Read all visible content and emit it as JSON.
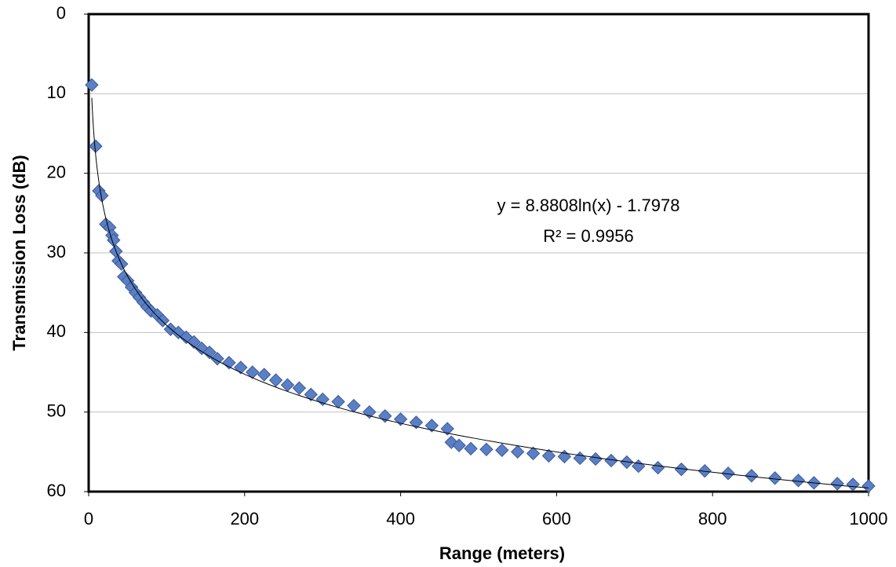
{
  "chart_data": {
    "type": "scatter",
    "x_label": "Range (meters)",
    "y_label": "Transmission Loss (dB)",
    "x": [
      4,
      9,
      13,
      17,
      22,
      27,
      30,
      32,
      35,
      38,
      42,
      45,
      50,
      55,
      60,
      65,
      70,
      75,
      80,
      88,
      95,
      105,
      115,
      125,
      135,
      145,
      155,
      165,
      180,
      195,
      210,
      225,
      240,
      255,
      270,
      285,
      300,
      320,
      340,
      360,
      380,
      400,
      420,
      440,
      460,
      465,
      475,
      490,
      510,
      530,
      550,
      570,
      590,
      610,
      630,
      650,
      670,
      690,
      705,
      730,
      760,
      790,
      820,
      850,
      880,
      910,
      930,
      960,
      980,
      1000
    ],
    "values": [
      8.9,
      16.6,
      22.2,
      22.8,
      26.4,
      26.8,
      27.8,
      28.4,
      29.8,
      31.0,
      31.4,
      33.0,
      33.5,
      34.3,
      35.0,
      35.6,
      36.2,
      36.8,
      37.3,
      37.8,
      38.5,
      39.6,
      40.0,
      40.6,
      41.2,
      42.0,
      42.5,
      43.3,
      43.8,
      44.4,
      45.0,
      45.3,
      46.0,
      46.6,
      47.0,
      47.8,
      48.4,
      48.7,
      49.2,
      50.0,
      50.5,
      50.9,
      51.3,
      51.7,
      52.1,
      53.8,
      54.2,
      54.6,
      54.7,
      54.8,
      55.0,
      55.2,
      55.5,
      55.6,
      55.8,
      55.9,
      56.1,
      56.3,
      56.8,
      57.0,
      57.2,
      57.4,
      57.7,
      58.0,
      58.3,
      58.6,
      58.9,
      59.0,
      59.1,
      59.3
    ],
    "color": "#5b7fc4",
    "xlim": [
      0,
      1000
    ],
    "xticks": [
      0,
      200,
      400,
      600,
      800,
      1000
    ],
    "ylim": [
      0,
      60
    ],
    "yticks": [
      0,
      10,
      20,
      30,
      40,
      50,
      60
    ],
    "y_inverted": true,
    "grid": true,
    "trendline": {
      "type": "log",
      "coefficients": [
        8.8808,
        -1.7978
      ],
      "color": "#000000",
      "equation": "y = 8.8808ln(x) - 1.7978",
      "r_squared": "R² = 0.9956"
    }
  }
}
